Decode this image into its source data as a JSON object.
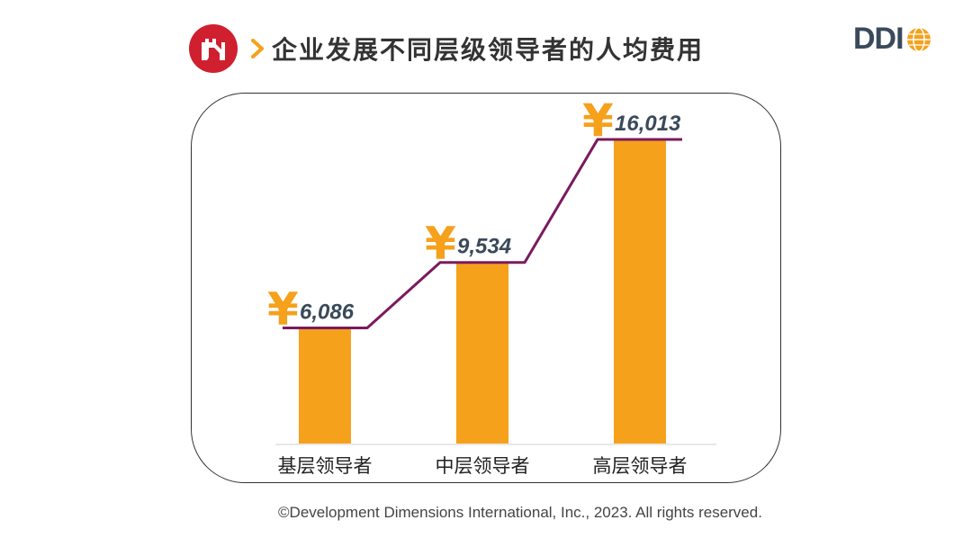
{
  "header": {
    "title": "企业发展不同层级领导者的人均费用",
    "logo": "great-wall-logo",
    "chevron_icon": "chevron-right-icon"
  },
  "brand": {
    "name": "DDI",
    "globe_icon": "globe-icon",
    "globe_color": "#f5a11c"
  },
  "chart_data": {
    "type": "bar",
    "title": "企业发展不同层级领导者的人均费用",
    "categories": [
      "基层领导者",
      "中层领导者",
      "高层领导者"
    ],
    "values": [
      6086,
      9534,
      16013
    ],
    "value_labels": [
      "6,086",
      "9,534",
      "16,013"
    ],
    "currency_symbol": "¥",
    "ylim": [
      0,
      18000
    ],
    "grid": false,
    "legend": "none",
    "bar_color": "#f5a11c",
    "line_color": "#7b1a5e",
    "xlabel": "",
    "ylabel": ""
  },
  "footer": {
    "copyright": "©Development Dimensions International, Inc., 2023. All rights reserved."
  }
}
